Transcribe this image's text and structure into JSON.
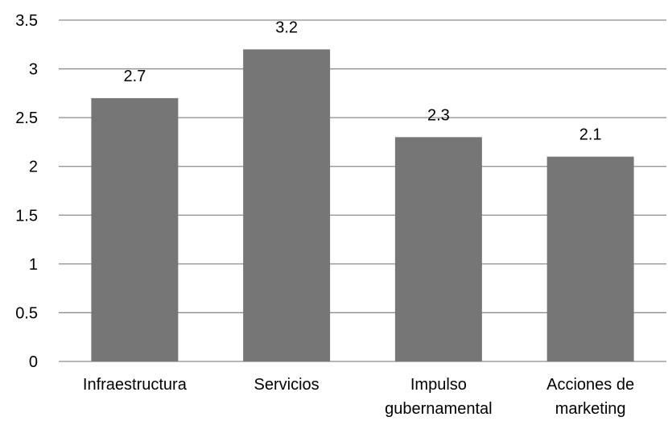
{
  "chart_data": {
    "type": "bar",
    "categories": [
      [
        "Infraestructura"
      ],
      [
        "Servicios"
      ],
      [
        "Impulso",
        "gubernamental"
      ],
      [
        "Acciones de",
        "marketing"
      ]
    ],
    "values": [
      2.7,
      3.2,
      2.3,
      2.1
    ],
    "data_labels": [
      "2.7",
      "3.2",
      "2.3",
      "2.1"
    ],
    "y_ticks": [
      "0",
      "0.5",
      "1",
      "1.5",
      "2",
      "2.5",
      "3",
      "3.5"
    ],
    "ylim": [
      0,
      3.5
    ],
    "title": "",
    "xlabel": "",
    "ylabel": "",
    "grid": true,
    "legend": "none",
    "bar_color": "#767676",
    "grid_color": "#8c8c8c"
  }
}
